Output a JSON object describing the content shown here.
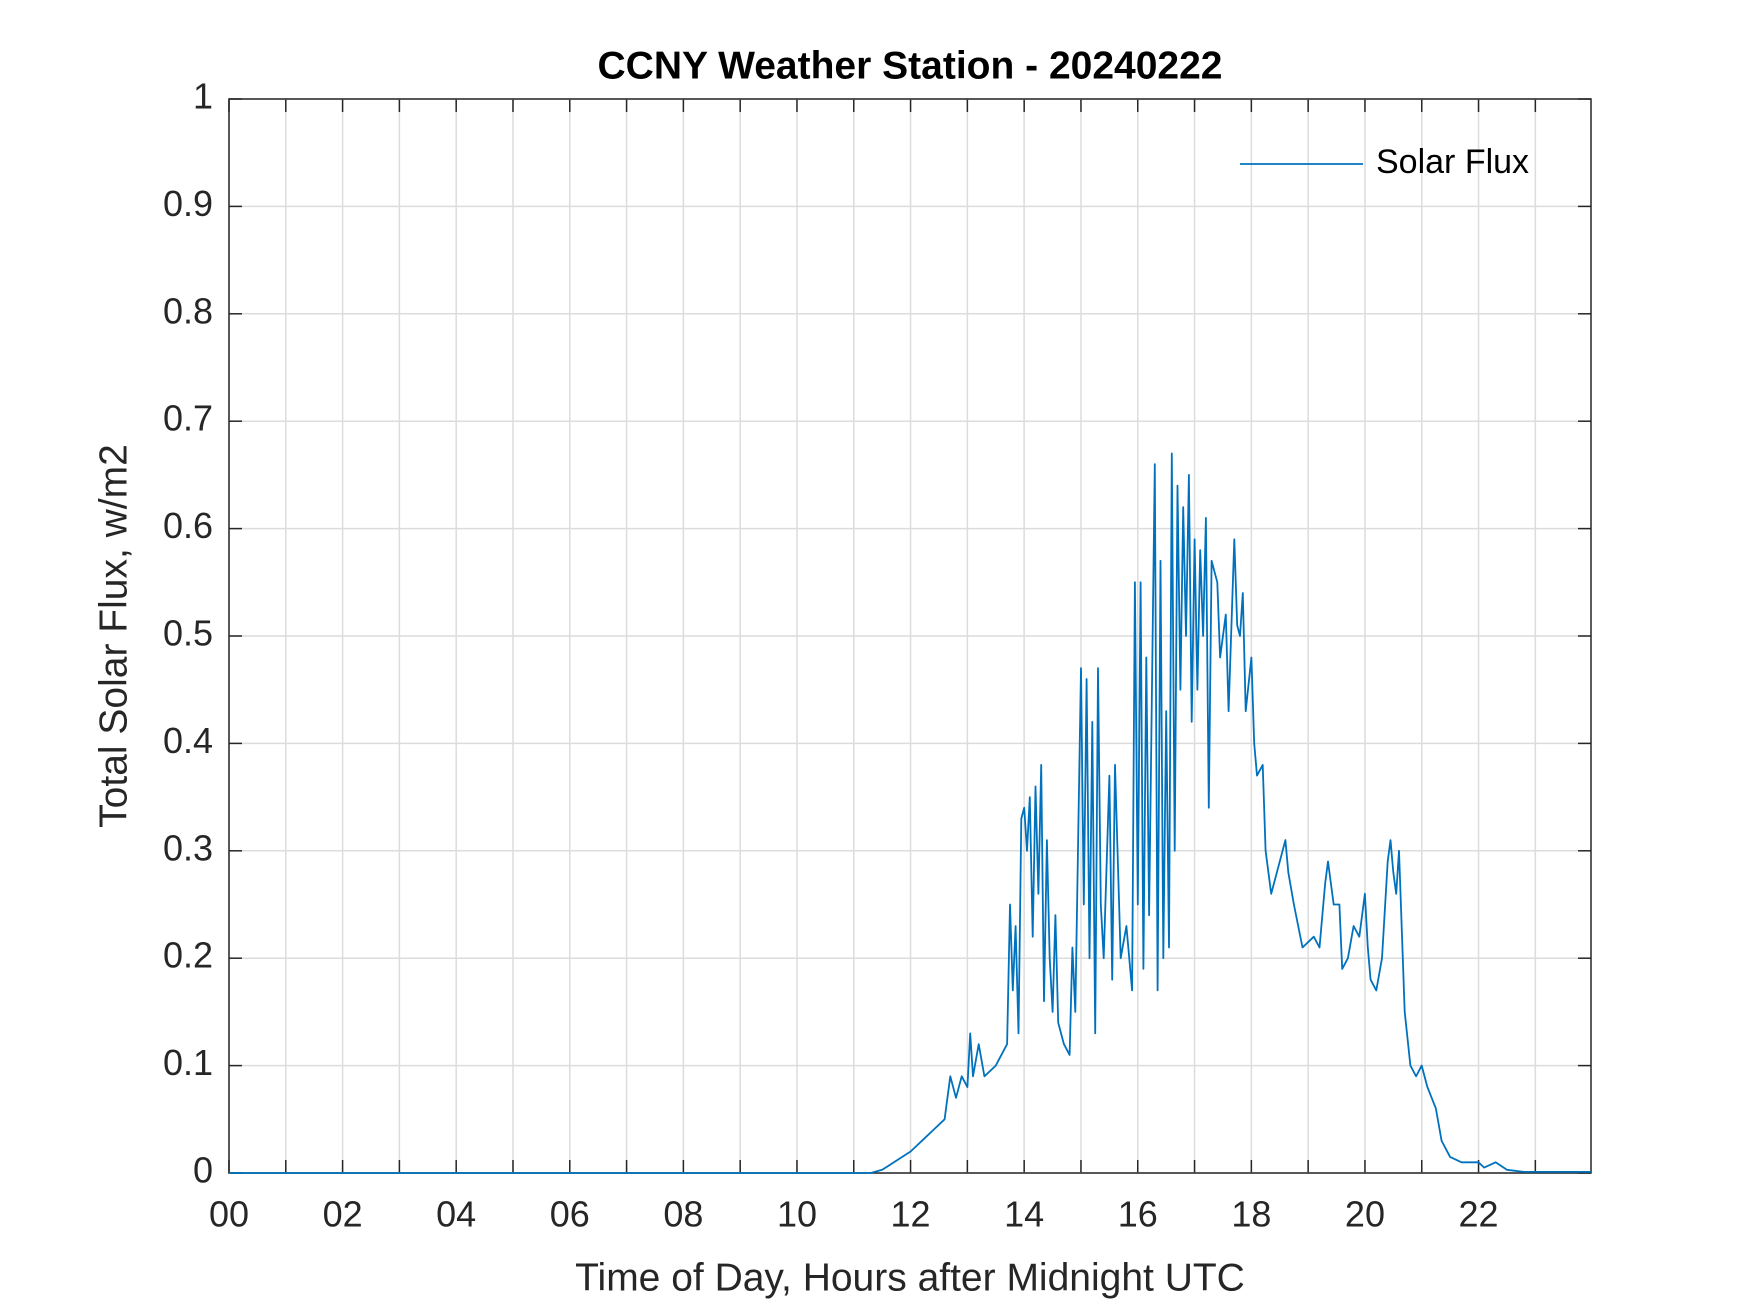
{
  "chart_data": {
    "type": "line",
    "title": "CCNY Weather Station - 20240222",
    "x_label": "Time of Day, Hours after Midnight UTC",
    "y_label": "Total Solar Flux, w/m2",
    "x": [
      0,
      11.3,
      11.5,
      12,
      12.2,
      12.4,
      12.6,
      12.7,
      12.8,
      12.9,
      13.0,
      13.05,
      13.1,
      13.2,
      13.3,
      13.5,
      13.7,
      13.75,
      13.8,
      13.85,
      13.9,
      13.95,
      14.0,
      14.05,
      14.1,
      14.15,
      14.2,
      14.25,
      14.3,
      14.35,
      14.4,
      14.45,
      14.5,
      14.55,
      14.6,
      14.7,
      14.8,
      14.85,
      14.9,
      15.0,
      15.05,
      15.1,
      15.15,
      15.2,
      15.25,
      15.3,
      15.35,
      15.4,
      15.5,
      15.55,
      15.6,
      15.7,
      15.8,
      15.9,
      15.95,
      16.0,
      16.05,
      16.1,
      16.15,
      16.2,
      16.3,
      16.35,
      16.4,
      16.45,
      16.5,
      16.55,
      16.6,
      16.65,
      16.7,
      16.75,
      16.8,
      16.85,
      16.9,
      16.95,
      17.0,
      17.05,
      17.1,
      17.15,
      17.2,
      17.25,
      17.3,
      17.4,
      17.45,
      17.55,
      17.6,
      17.7,
      17.75,
      17.8,
      17.85,
      17.9,
      18.0,
      18.05,
      18.1,
      18.2,
      18.25,
      18.35,
      18.45,
      18.6,
      18.65,
      18.75,
      18.9,
      19.1,
      19.2,
      19.3,
      19.35,
      19.45,
      19.55,
      19.6,
      19.7,
      19.8,
      19.9,
      20.0,
      20.05,
      20.1,
      20.2,
      20.3,
      20.4,
      20.45,
      20.5,
      20.55,
      20.6,
      20.7,
      20.8,
      20.9,
      21.0,
      21.1,
      21.25,
      21.35,
      21.5,
      21.7,
      21.9,
      22.0,
      22.1,
      22.3,
      22.5,
      22.8,
      23.98
    ],
    "series": [
      {
        "name": "Solar Flux",
        "color": "#0072bd",
        "values": [
          0,
          0,
          0.003,
          0.02,
          0.03,
          0.04,
          0.05,
          0.09,
          0.07,
          0.09,
          0.08,
          0.13,
          0.09,
          0.12,
          0.09,
          0.1,
          0.12,
          0.25,
          0.17,
          0.23,
          0.13,
          0.33,
          0.34,
          0.3,
          0.35,
          0.22,
          0.36,
          0.26,
          0.38,
          0.16,
          0.31,
          0.2,
          0.15,
          0.24,
          0.14,
          0.12,
          0.11,
          0.21,
          0.15,
          0.47,
          0.25,
          0.46,
          0.2,
          0.42,
          0.13,
          0.47,
          0.25,
          0.2,
          0.37,
          0.18,
          0.38,
          0.2,
          0.23,
          0.17,
          0.55,
          0.25,
          0.55,
          0.19,
          0.48,
          0.24,
          0.66,
          0.17,
          0.57,
          0.2,
          0.43,
          0.21,
          0.67,
          0.3,
          0.64,
          0.45,
          0.62,
          0.5,
          0.65,
          0.42,
          0.59,
          0.45,
          0.58,
          0.5,
          0.61,
          0.34,
          0.57,
          0.55,
          0.48,
          0.52,
          0.43,
          0.59,
          0.51,
          0.5,
          0.54,
          0.43,
          0.48,
          0.4,
          0.37,
          0.38,
          0.3,
          0.26,
          0.28,
          0.31,
          0.28,
          0.25,
          0.21,
          0.22,
          0.21,
          0.27,
          0.29,
          0.25,
          0.25,
          0.19,
          0.2,
          0.23,
          0.22,
          0.26,
          0.21,
          0.18,
          0.17,
          0.2,
          0.29,
          0.31,
          0.28,
          0.26,
          0.3,
          0.15,
          0.1,
          0.09,
          0.1,
          0.08,
          0.06,
          0.03,
          0.015,
          0.01,
          0.01,
          0.01,
          0.005,
          0.01,
          0.003,
          0.001,
          0.001
        ]
      }
    ],
    "xlim": [
      0,
      23.98
    ],
    "xticks": [
      {
        "value": 0,
        "label": "00"
      },
      {
        "value": 2,
        "label": "02"
      },
      {
        "value": 4,
        "label": "04"
      },
      {
        "value": 6,
        "label": "06"
      },
      {
        "value": 8,
        "label": "08"
      },
      {
        "value": 10,
        "label": "10"
      },
      {
        "value": 12,
        "label": "12"
      },
      {
        "value": 14,
        "label": "14"
      },
      {
        "value": 16,
        "label": "16"
      },
      {
        "value": 18,
        "label": "18"
      },
      {
        "value": 20,
        "label": "20"
      },
      {
        "value": 22,
        "label": "22"
      }
    ],
    "xminorticks": [
      1,
      3,
      5,
      7,
      9,
      11,
      13,
      15,
      17,
      19,
      21,
      23
    ],
    "ylim": [
      0,
      1
    ],
    "yticks": [
      0,
      0.1,
      0.2,
      0.3,
      0.4,
      0.5,
      0.6,
      0.7,
      0.8,
      0.9,
      1
    ],
    "grid": true,
    "legend": "upper right"
  }
}
